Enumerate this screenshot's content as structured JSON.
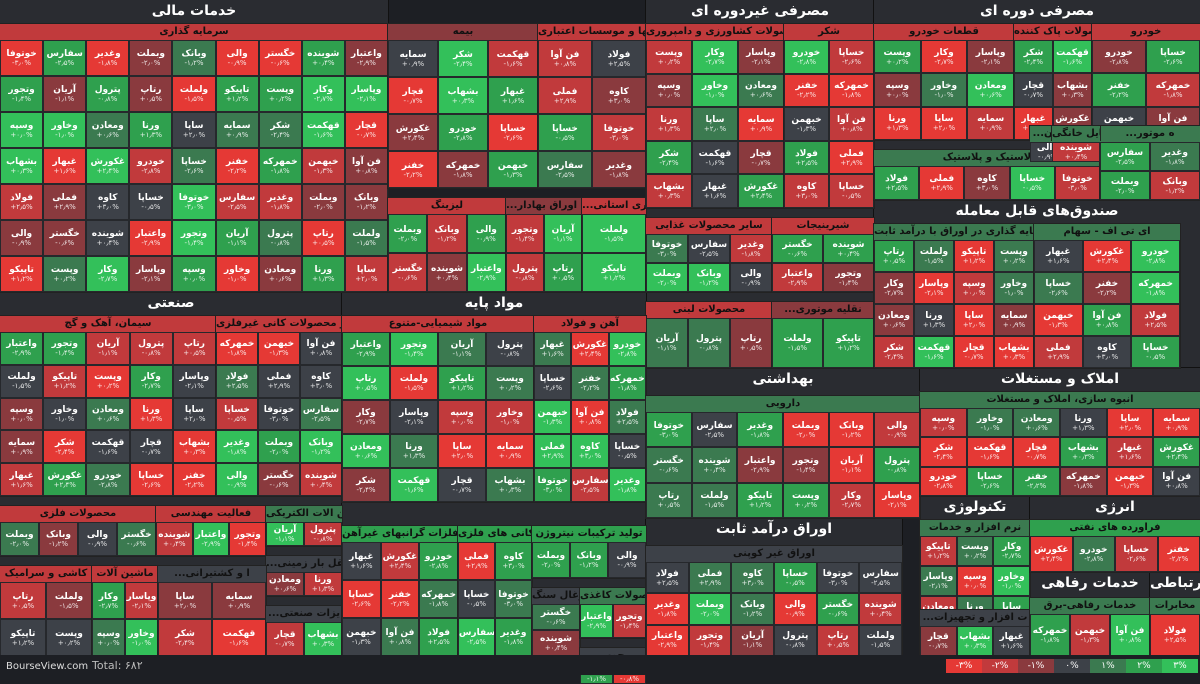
{
  "colors": {
    "r3": "#e53935",
    "r2": "#c13a3c",
    "r1": "#8a3a3e",
    "n0": "#3d4148",
    "g1": "#3b7a50",
    "g2": "#2fa04e",
    "g3": "#33c05a"
  },
  "sectors": [
    {
      "title": "خدمات مالی"
    },
    {
      "title": "مصرفی غیردوره ای"
    },
    {
      "title": "مصرفی دوره ای"
    },
    {
      "title": "صنعتی"
    },
    {
      "title": "مواد پایه"
    },
    {
      "title": "صندوق‌های قابل معامله"
    },
    {
      "title": "بهداشتی"
    },
    {
      "title": "املاک و مستغلات"
    },
    {
      "title": "اوراق درآمد ثابت"
    },
    {
      "title": "تکنولوژی"
    },
    {
      "title": "انرژی"
    },
    {
      "title": "خدمات رفاهی"
    },
    {
      "title": "ارتباطی"
    }
  ],
  "industries": [
    "سرمایه گذاری",
    "بیمه",
    "بانکها و موسسات اعتباری",
    "لیزینگ",
    "...رتبط با اوراق بهادار",
    "...ه گذاری استانی",
    "محصولات کشاورزی و دامپروری",
    "شکر",
    "سایر محصولات غذایی",
    "شیرینیجات",
    "محصولات لبنی",
    "...نقلیه موتوری",
    "قطعات خودرو",
    "محصولات پاک کننده",
    "خودرو",
    "لاستیک و پلاستیک",
    "...ه موتور",
    "...و رستوران",
    "وسایل خانگی",
    "سیمان، آهک و گچ",
    "سایر محصولات کانی غیرفلزی",
    "مواد شیمیایی-متنوع",
    "آهن و فولاد",
    "محصولات فلزی",
    "فعالیت مهندسی",
    "ماشین الات الکتریکی",
    "کاشی و سرامیک",
    "ماشین آلات",
    "...ل و نقل بار زمینی",
    "...ا و کشتیرانی",
    "...یزات صنعتی",
    "تولید فلزات گرانبهای غیرآهن",
    "کانی های فلزی",
    "تولید ترکیبات نیتروژن",
    "زغال سنگ",
    "محصولات کاغذی",
    "چوب",
    "صندوق سرمایه گذاری در اوراق با درآمد ثابت",
    "ای تی اف - سهام",
    "دارویی",
    "انبوه سازی، املاک و مستغلات",
    "اوراق غیر کوپنی",
    "نرم افزار و خدمات",
    "...ت افزار و تجهیزات",
    "فراورده های نفتی",
    "خدمات رفاهی-برق",
    "مخابرات"
  ],
  "tiles": [
    [
      "خوتوفا",
      "-۳٫۰%"
    ],
    [
      "سفارس",
      "-۲٫۵%"
    ],
    [
      "وغدیر",
      "-۱٫۸%"
    ],
    [
      "وبملت",
      "-۲٫۰%"
    ],
    [
      "وبانک",
      "-۱٫۲%"
    ],
    [
      "والی",
      "-۰٫۹%"
    ],
    [
      "خگستر",
      "-۰٫۶%"
    ],
    [
      "شوینده",
      "+۰٫۴%"
    ],
    [
      "واعتبار",
      "-۲٫۹%"
    ],
    [
      "وتجور",
      "-۱٫۴%"
    ],
    [
      "آریان",
      "-۱٫۱%"
    ],
    [
      "پترول",
      "-۰٫۸%"
    ],
    [
      "رتاپ",
      "+۰٫۵%"
    ],
    [
      "ولملت",
      "-۱٫۵%"
    ],
    [
      "تاپیکو",
      "+۱٫۲%"
    ],
    [
      "وپست",
      "+۰٫۲%"
    ],
    [
      "وکار",
      "-۲٫۷%"
    ],
    [
      "وپاسار",
      "-۲٫۱%"
    ],
    [
      "وسپه",
      "+۰٫۰%"
    ],
    [
      "وخاور",
      "-۱٫۰%"
    ],
    [
      "ومعادن",
      "+۰٫۶%"
    ],
    [
      "ورنا",
      "+۱٫۳%"
    ],
    [
      "ساپا",
      "+۲٫۰%"
    ],
    [
      "سمایه",
      "+۰٫۹%"
    ],
    [
      "شکر",
      "-۲٫۴%"
    ],
    [
      "قهکمت",
      "-۱٫۶%"
    ],
    [
      "قچار",
      "-۰٫۷%"
    ],
    [
      "بشهاب",
      "+۰٫۳%"
    ],
    [
      "غبهار",
      "+۱٫۶%"
    ],
    [
      "غکورش",
      "+۲٫۴%"
    ],
    [
      "خودرو",
      "-۲٫۸%"
    ],
    [
      "خساپا",
      "-۲٫۶%"
    ],
    [
      "خفنر",
      "-۲٫۲%"
    ],
    [
      "خمهرکه",
      "-۱٫۸%"
    ],
    [
      "خبهمن",
      "-۱٫۳%"
    ],
    [
      "فن آوا",
      "+۰٫۸%"
    ],
    [
      "فولاد",
      "+۲٫۵%"
    ],
    [
      "فملی",
      "+۲٫۹%"
    ],
    [
      "کاوه",
      "+۳٫۰%"
    ],
    [
      "خساپا",
      "-۰٫۵%"
    ]
  ],
  "footer": {
    "site": "BourseView.com",
    "total": "Total: ۶۸۲"
  },
  "legend": [
    "-۳%",
    "-۲%",
    "-۱%",
    "۰%",
    "۱%",
    "۲%",
    "۳%"
  ]
}
